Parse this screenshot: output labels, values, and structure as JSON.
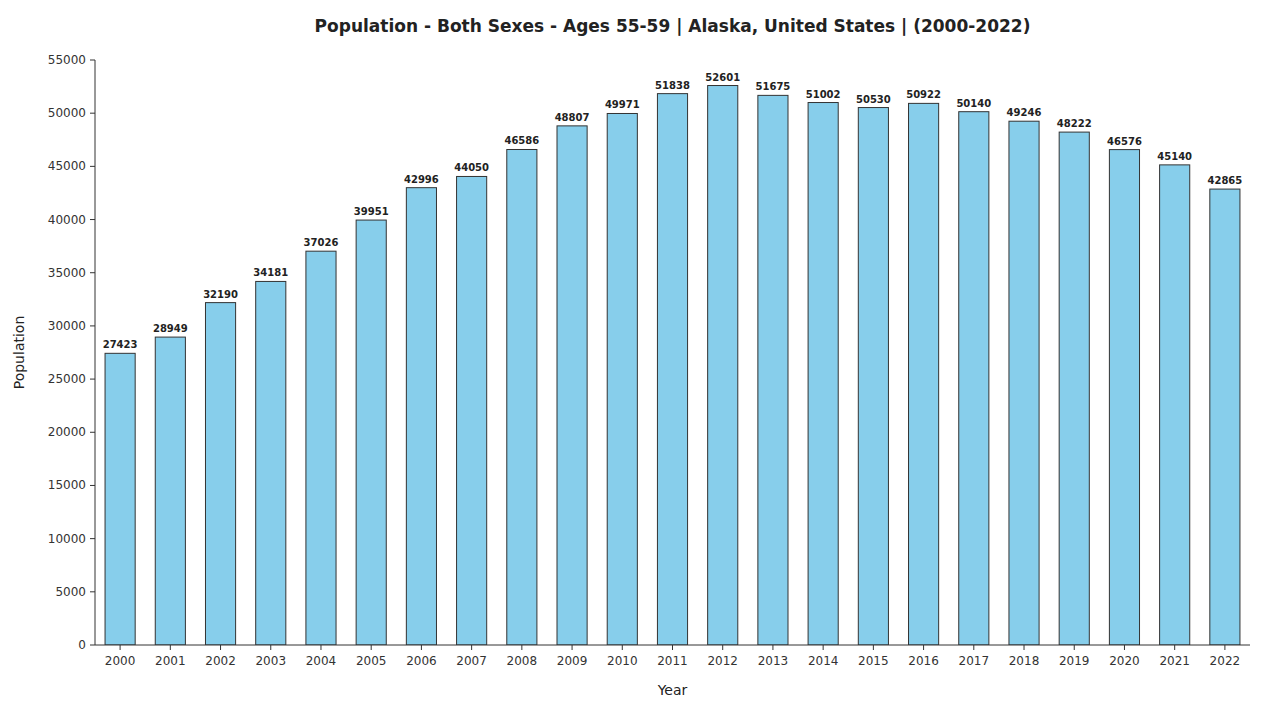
{
  "chart_data": {
    "type": "bar",
    "title": "Population - Both Sexes - Ages 55-59 | Alaska, United States |  (2000-2022)",
    "xlabel": "Year",
    "ylabel": "Population",
    "categories": [
      "2000",
      "2001",
      "2002",
      "2003",
      "2004",
      "2005",
      "2006",
      "2007",
      "2008",
      "2009",
      "2010",
      "2011",
      "2012",
      "2013",
      "2014",
      "2015",
      "2016",
      "2017",
      "2018",
      "2019",
      "2020",
      "2021",
      "2022"
    ],
    "values": [
      27423,
      28949,
      32190,
      34181,
      37026,
      39951,
      42996,
      44050,
      46586,
      48807,
      49971,
      51838,
      52601,
      51675,
      51002,
      50530,
      50922,
      50140,
      49246,
      48222,
      46576,
      45140,
      42865
    ],
    "color": "#87ceeb",
    "ylim": [
      0,
      55000
    ],
    "yticks": [
      0,
      5000,
      10000,
      15000,
      20000,
      25000,
      30000,
      35000,
      40000,
      45000,
      50000,
      55000
    ],
    "grid": false,
    "data_labels": true
  }
}
